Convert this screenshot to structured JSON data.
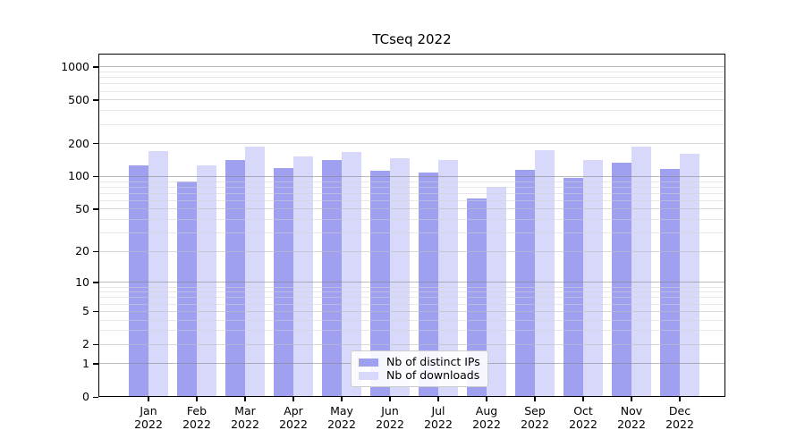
{
  "chart_data": {
    "type": "bar",
    "title": "TCseq 2022",
    "year": "2022",
    "categories": [
      "Jan",
      "Feb",
      "Mar",
      "Apr",
      "May",
      "Jun",
      "Jul",
      "Aug",
      "Sep",
      "Oct",
      "Nov",
      "Dec"
    ],
    "series": [
      {
        "name": "Nb of distinct IPs",
        "color": "#a0a0f0",
        "values": [
          127,
          90,
          142,
          120,
          141,
          113,
          108,
          63,
          116,
          97,
          133,
          117
        ]
      },
      {
        "name": "Nb of downloads",
        "color": "#d8d8fa",
        "values": [
          171,
          127,
          188,
          153,
          168,
          147,
          141,
          81,
          173,
          141,
          188,
          163
        ]
      }
    ],
    "yscale": "log1p",
    "yticks": [
      0,
      1,
      2,
      5,
      10,
      20,
      50,
      100,
      200,
      500,
      1000
    ],
    "ylim": [
      0,
      1300
    ],
    "grid": "on",
    "legend_position": "bottom-center"
  }
}
